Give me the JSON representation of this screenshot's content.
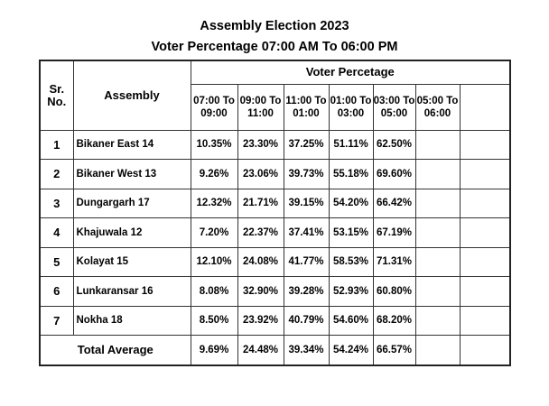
{
  "title": "Assembly Election 2023",
  "subtitle": "Voter Percentage 07:00 AM To 06:00 PM",
  "table": {
    "sr_header": "Sr. No.",
    "assembly_header": "Assembly",
    "group_header": "Voter Percetage",
    "time_slots": [
      "07:00 To 09:00",
      "09:00 To 11:00",
      "11:00 To 01:00",
      "01:00 To 03:00",
      "03:00 To 05:00",
      "05:00 To 06:00",
      ""
    ],
    "rows": [
      {
        "sr": "1",
        "assembly": "Bikaner East 14",
        "values": [
          "10.35%",
          "23.30%",
          "37.25%",
          "51.11%",
          "62.50%",
          "",
          ""
        ]
      },
      {
        "sr": "2",
        "assembly": "Bikaner West 13",
        "values": [
          "9.26%",
          "23.06%",
          "39.73%",
          "55.18%",
          "69.60%",
          "",
          ""
        ]
      },
      {
        "sr": "3",
        "assembly": "Dungargarh 17",
        "values": [
          "12.32%",
          "21.71%",
          "39.15%",
          "54.20%",
          "66.42%",
          "",
          ""
        ]
      },
      {
        "sr": "4",
        "assembly": "Khajuwala 12",
        "values": [
          "7.20%",
          "22.37%",
          "37.41%",
          "53.15%",
          "67.19%",
          "",
          ""
        ]
      },
      {
        "sr": "5",
        "assembly": "Kolayat 15",
        "values": [
          "12.10%",
          "24.08%",
          "41.77%",
          "58.53%",
          "71.31%",
          "",
          ""
        ]
      },
      {
        "sr": "6",
        "assembly": "Lunkaransar 16",
        "values": [
          "8.08%",
          "32.90%",
          "39.28%",
          "52.93%",
          "60.80%",
          "",
          ""
        ]
      },
      {
        "sr": "7",
        "assembly": "Nokha 18",
        "values": [
          "8.50%",
          "23.92%",
          "40.79%",
          "54.60%",
          "68.20%",
          "",
          ""
        ]
      }
    ],
    "total": {
      "label": "Total Average",
      "values": [
        "9.69%",
        "24.48%",
        "39.34%",
        "54.24%",
        "66.57%",
        "",
        ""
      ]
    }
  }
}
